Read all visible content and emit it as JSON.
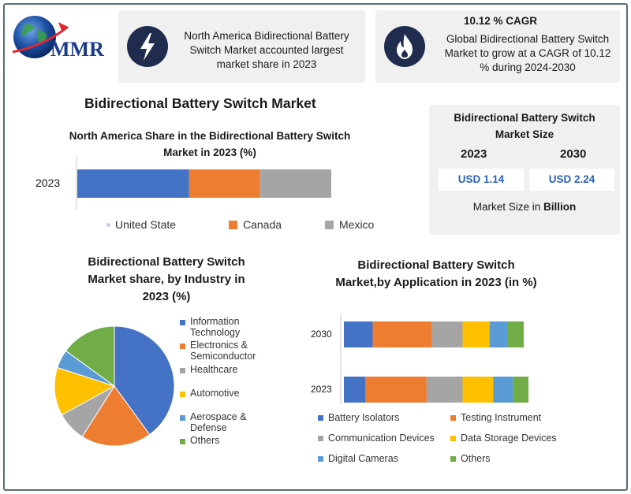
{
  "logo": {
    "text": "MMR"
  },
  "colors": {
    "blue": "#4472c4",
    "orange": "#ed7d31",
    "gray": "#a5a5a5",
    "yellow": "#ffc000",
    "lightblue": "#5b9bd5",
    "green": "#70ad47",
    "lilac": "#c8c8e6",
    "navy": "#1f2c4d"
  },
  "top_cards": {
    "left_text": "North America Bidirectional Battery Switch Market accounted largest market share in 2023",
    "right_title": "10.12 % CAGR",
    "right_text": "Global Bidirectional Battery Switch Market to grow at a CAGR of 10.12 % during 2024-2030"
  },
  "main_title": "Bidirectional Battery Switch Market",
  "market_size": {
    "title": "Bidirectional  Battery Switch Market Size",
    "year1": "2023",
    "year2": "2030",
    "value1": "USD 1.14",
    "value2": "USD 2.24",
    "footer_prefix": "Market Size in ",
    "footer_bold": "Billion"
  },
  "chart_data": [
    {
      "type": "bar",
      "orientation": "horizontal-stacked",
      "title": "North America Share in the Bidirectional  Battery Switch Market in 2023 (%)",
      "categories": [
        "2023"
      ],
      "series": [
        {
          "name": "United State",
          "values": [
            44
          ]
        },
        {
          "name": "Canada",
          "values": [
            28
          ]
        },
        {
          "name": "Mexico",
          "values": [
            28
          ]
        }
      ],
      "legend": "bottom"
    },
    {
      "type": "pie",
      "title": "Bidirectional Battery Switch Market share, by Industry in 2023  (%)",
      "labels": [
        "Information Technology",
        "Electronics & Semiconductor",
        "Healthcare",
        "Automotive",
        "Aerospace & Defense",
        "Others"
      ],
      "values": [
        40,
        19,
        8,
        13,
        5,
        15
      ],
      "legend": "right"
    },
    {
      "type": "bar",
      "orientation": "horizontal-stacked",
      "title": "Bidirectional Battery Switch Market,by Application in 2023 (in %)",
      "categories": [
        "2030",
        "2023"
      ],
      "series": [
        {
          "name": "Battery Isolators",
          "values": [
            16,
            12
          ]
        },
        {
          "name": "Testing Instrument",
          "values": [
            33,
            34
          ]
        },
        {
          "name": "Communication Devices",
          "values": [
            17,
            20
          ]
        },
        {
          "name": "Data Storage Devices",
          "values": [
            15,
            17
          ]
        },
        {
          "name": "Digital Cameras",
          "values": [
            10,
            11
          ]
        },
        {
          "name": "Others",
          "values": [
            9,
            12
          ]
        }
      ],
      "legend": "bottom"
    }
  ]
}
